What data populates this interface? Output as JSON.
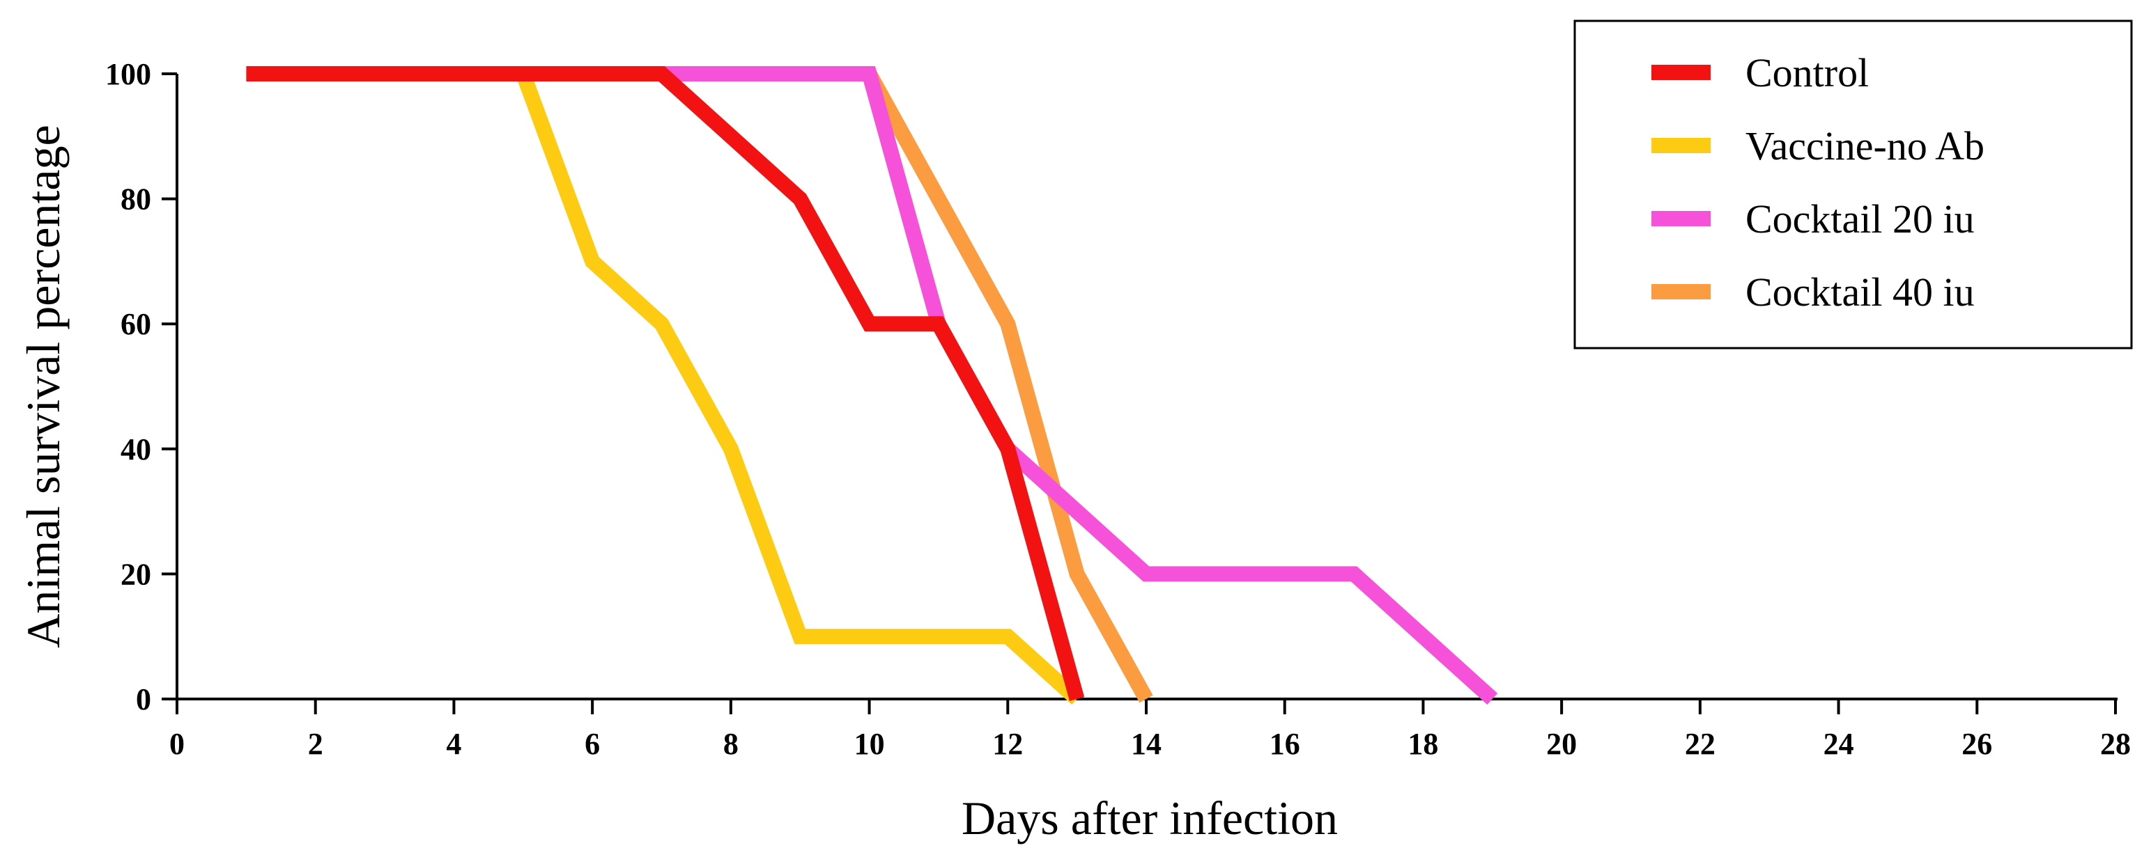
{
  "chart_data": {
    "type": "line",
    "title": "",
    "xlabel": "Days after infection",
    "ylabel": "Animal survival percentage",
    "xlim": [
      0,
      28
    ],
    "ylim": [
      0,
      100
    ],
    "xticks": [
      0,
      2,
      4,
      6,
      8,
      10,
      12,
      14,
      16,
      18,
      20,
      22,
      24,
      26,
      28
    ],
    "yticks": [
      0,
      20,
      40,
      60,
      80,
      100
    ],
    "grid": false,
    "legend_position": "top-right",
    "series": [
      {
        "name": "Control",
        "color": "#f21212",
        "x": [
          1,
          7,
          9,
          10,
          11,
          12,
          13
        ],
        "y": [
          100,
          100,
          80,
          60,
          60,
          40,
          0
        ]
      },
      {
        "name": "Vaccine-no Ab",
        "color": "#fdcc12",
        "x": [
          5,
          6,
          7,
          8,
          9,
          12,
          13
        ],
        "y": [
          100,
          70,
          60,
          40,
          10,
          10,
          0
        ]
      },
      {
        "name": "Cocktail 20 iu",
        "color": "#f552d9",
        "x": [
          7,
          10,
          11,
          12,
          14,
          17,
          19
        ],
        "y": [
          100,
          100,
          60,
          40,
          20,
          20,
          0
        ]
      },
      {
        "name": "Cocktail 40 iu",
        "color": "#fb9c40",
        "x": [
          10,
          12,
          13,
          14
        ],
        "y": [
          100,
          60,
          20,
          0
        ]
      }
    ]
  }
}
